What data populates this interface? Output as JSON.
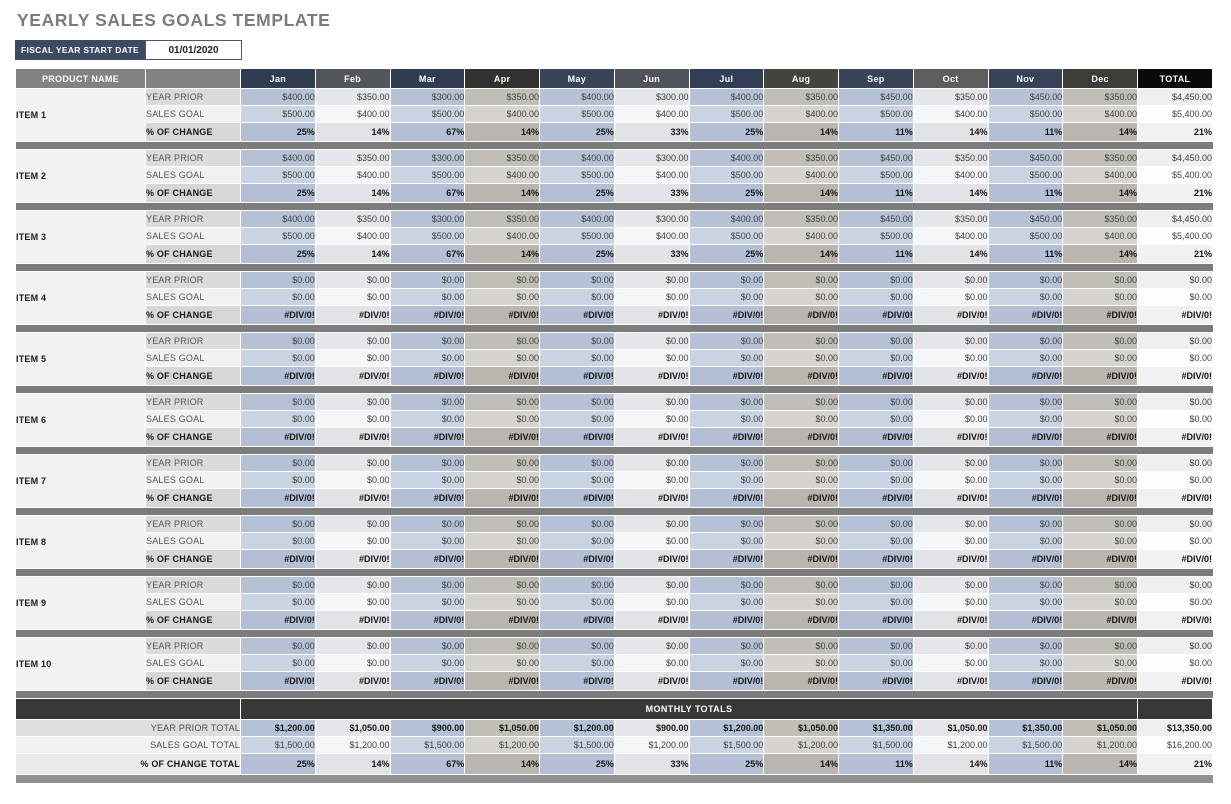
{
  "title": "YEARLY SALES GOALS TEMPLATE",
  "fiscal": {
    "label": "FISCAL YEAR START DATE",
    "value": "01/01/2020"
  },
  "colors": {
    "accent_navy": "#3d4a64",
    "header_gray": "#828282",
    "separator_gray": "#7c7c7c",
    "totals_bar_dark": "#383838",
    "total_header_black": "#0a0a0a",
    "month_headers": [
      "#303c52",
      "#53565b",
      "#303c52",
      "#333130",
      "#3a4459",
      "#50535a",
      "#323e55",
      "#454340",
      "#3a4459",
      "#5e5e5e",
      "#38435a",
      "#3e3c39"
    ],
    "column_tint_blue": "#b5c2d6",
    "column_tint_light": "#e5e6e9",
    "column_tint_warm": "#c1beb8"
  },
  "table": {
    "product_header": "PRODUCT NAME",
    "months": [
      "Jan",
      "Feb",
      "Mar",
      "Apr",
      "May",
      "Jun",
      "Jul",
      "Aug",
      "Sep",
      "Oct",
      "Nov",
      "Dec"
    ],
    "total_header": "TOTAL",
    "row_labels": {
      "year_prior": "YEAR PRIOR",
      "sales_goal": "SALES GOAL",
      "pct_change": "% OF CHANGE"
    },
    "items": [
      {
        "name": "ITEM 1",
        "year_prior": [
          "$400.00",
          "$350.00",
          "$300.00",
          "$350.00",
          "$400.00",
          "$300.00",
          "$400.00",
          "$350.00",
          "$450.00",
          "$350.00",
          "$450.00",
          "$350.00"
        ],
        "year_prior_total": "$4,450.00",
        "sales_goal": [
          "$500.00",
          "$400.00",
          "$500.00",
          "$400.00",
          "$500.00",
          "$400.00",
          "$500.00",
          "$400.00",
          "$500.00",
          "$400.00",
          "$500.00",
          "$400.00"
        ],
        "sales_goal_total": "$5,400.00",
        "pct_change": [
          "25%",
          "14%",
          "67%",
          "14%",
          "25%",
          "33%",
          "25%",
          "14%",
          "11%",
          "14%",
          "11%",
          "14%"
        ],
        "pct_change_total": "21%"
      },
      {
        "name": "ITEM 2",
        "year_prior": [
          "$400.00",
          "$350.00",
          "$300.00",
          "$350.00",
          "$400.00",
          "$300.00",
          "$400.00",
          "$350.00",
          "$450.00",
          "$350.00",
          "$450.00",
          "$350.00"
        ],
        "year_prior_total": "$4,450.00",
        "sales_goal": [
          "$500.00",
          "$400.00",
          "$500.00",
          "$400.00",
          "$500.00",
          "$400.00",
          "$500.00",
          "$400.00",
          "$500.00",
          "$400.00",
          "$500.00",
          "$400.00"
        ],
        "sales_goal_total": "$5,400.00",
        "pct_change": [
          "25%",
          "14%",
          "67%",
          "14%",
          "25%",
          "33%",
          "25%",
          "14%",
          "11%",
          "14%",
          "11%",
          "14%"
        ],
        "pct_change_total": "21%"
      },
      {
        "name": "ITEM 3",
        "year_prior": [
          "$400.00",
          "$350.00",
          "$300.00",
          "$350.00",
          "$400.00",
          "$300.00",
          "$400.00",
          "$350.00",
          "$450.00",
          "$350.00",
          "$450.00",
          "$350.00"
        ],
        "year_prior_total": "$4,450.00",
        "sales_goal": [
          "$500.00",
          "$400.00",
          "$500.00",
          "$400.00",
          "$500.00",
          "$400.00",
          "$500.00",
          "$400.00",
          "$500.00",
          "$400.00",
          "$500.00",
          "$400.00"
        ],
        "sales_goal_total": "$5,400.00",
        "pct_change": [
          "25%",
          "14%",
          "67%",
          "14%",
          "25%",
          "33%",
          "25%",
          "14%",
          "11%",
          "14%",
          "11%",
          "14%"
        ],
        "pct_change_total": "21%"
      },
      {
        "name": "ITEM 4",
        "year_prior": [
          "$0.00",
          "$0.00",
          "$0.00",
          "$0.00",
          "$0.00",
          "$0.00",
          "$0.00",
          "$0.00",
          "$0.00",
          "$0.00",
          "$0.00",
          "$0.00"
        ],
        "year_prior_total": "$0.00",
        "sales_goal": [
          "$0.00",
          "$0.00",
          "$0.00",
          "$0.00",
          "$0.00",
          "$0.00",
          "$0.00",
          "$0.00",
          "$0.00",
          "$0.00",
          "$0.00",
          "$0.00"
        ],
        "sales_goal_total": "$0.00",
        "pct_change": [
          "#DIV/0!",
          "#DIV/0!",
          "#DIV/0!",
          "#DIV/0!",
          "#DIV/0!",
          "#DIV/0!",
          "#DIV/0!",
          "#DIV/0!",
          "#DIV/0!",
          "#DIV/0!",
          "#DIV/0!",
          "#DIV/0!"
        ],
        "pct_change_total": "#DIV/0!"
      },
      {
        "name": "ITEM 5",
        "year_prior": [
          "$0.00",
          "$0.00",
          "$0.00",
          "$0.00",
          "$0.00",
          "$0.00",
          "$0.00",
          "$0.00",
          "$0.00",
          "$0.00",
          "$0.00",
          "$0.00"
        ],
        "year_prior_total": "$0.00",
        "sales_goal": [
          "$0.00",
          "$0.00",
          "$0.00",
          "$0.00",
          "$0.00",
          "$0.00",
          "$0.00",
          "$0.00",
          "$0.00",
          "$0.00",
          "$0.00",
          "$0.00"
        ],
        "sales_goal_total": "$0.00",
        "pct_change": [
          "#DIV/0!",
          "#DIV/0!",
          "#DIV/0!",
          "#DIV/0!",
          "#DIV/0!",
          "#DIV/0!",
          "#DIV/0!",
          "#DIV/0!",
          "#DIV/0!",
          "#DIV/0!",
          "#DIV/0!",
          "#DIV/0!"
        ],
        "pct_change_total": "#DIV/0!"
      },
      {
        "name": "ITEM 6",
        "year_prior": [
          "$0.00",
          "$0.00",
          "$0.00",
          "$0.00",
          "$0.00",
          "$0.00",
          "$0.00",
          "$0.00",
          "$0.00",
          "$0.00",
          "$0.00",
          "$0.00"
        ],
        "year_prior_total": "$0.00",
        "sales_goal": [
          "$0.00",
          "$0.00",
          "$0.00",
          "$0.00",
          "$0.00",
          "$0.00",
          "$0.00",
          "$0.00",
          "$0.00",
          "$0.00",
          "$0.00",
          "$0.00"
        ],
        "sales_goal_total": "$0.00",
        "pct_change": [
          "#DIV/0!",
          "#DIV/0!",
          "#DIV/0!",
          "#DIV/0!",
          "#DIV/0!",
          "#DIV/0!",
          "#DIV/0!",
          "#DIV/0!",
          "#DIV/0!",
          "#DIV/0!",
          "#DIV/0!",
          "#DIV/0!"
        ],
        "pct_change_total": "#DIV/0!"
      },
      {
        "name": "ITEM 7",
        "year_prior": [
          "$0.00",
          "$0.00",
          "$0.00",
          "$0.00",
          "$0.00",
          "$0.00",
          "$0.00",
          "$0.00",
          "$0.00",
          "$0.00",
          "$0.00",
          "$0.00"
        ],
        "year_prior_total": "$0.00",
        "sales_goal": [
          "$0.00",
          "$0.00",
          "$0.00",
          "$0.00",
          "$0.00",
          "$0.00",
          "$0.00",
          "$0.00",
          "$0.00",
          "$0.00",
          "$0.00",
          "$0.00"
        ],
        "sales_goal_total": "$0.00",
        "pct_change": [
          "#DIV/0!",
          "#DIV/0!",
          "#DIV/0!",
          "#DIV/0!",
          "#DIV/0!",
          "#DIV/0!",
          "#DIV/0!",
          "#DIV/0!",
          "#DIV/0!",
          "#DIV/0!",
          "#DIV/0!",
          "#DIV/0!"
        ],
        "pct_change_total": "#DIV/0!"
      },
      {
        "name": "ITEM 8",
        "year_prior": [
          "$0.00",
          "$0.00",
          "$0.00",
          "$0.00",
          "$0.00",
          "$0.00",
          "$0.00",
          "$0.00",
          "$0.00",
          "$0.00",
          "$0.00",
          "$0.00"
        ],
        "year_prior_total": "$0.00",
        "sales_goal": [
          "$0.00",
          "$0.00",
          "$0.00",
          "$0.00",
          "$0.00",
          "$0.00",
          "$0.00",
          "$0.00",
          "$0.00",
          "$0.00",
          "$0.00",
          "$0.00"
        ],
        "sales_goal_total": "$0.00",
        "pct_change": [
          "#DIV/0!",
          "#DIV/0!",
          "#DIV/0!",
          "#DIV/0!",
          "#DIV/0!",
          "#DIV/0!",
          "#DIV/0!",
          "#DIV/0!",
          "#DIV/0!",
          "#DIV/0!",
          "#DIV/0!",
          "#DIV/0!"
        ],
        "pct_change_total": "#DIV/0!"
      },
      {
        "name": "ITEM 9",
        "year_prior": [
          "$0.00",
          "$0.00",
          "$0.00",
          "$0.00",
          "$0.00",
          "$0.00",
          "$0.00",
          "$0.00",
          "$0.00",
          "$0.00",
          "$0.00",
          "$0.00"
        ],
        "year_prior_total": "$0.00",
        "sales_goal": [
          "$0.00",
          "$0.00",
          "$0.00",
          "$0.00",
          "$0.00",
          "$0.00",
          "$0.00",
          "$0.00",
          "$0.00",
          "$0.00",
          "$0.00",
          "$0.00"
        ],
        "sales_goal_total": "$0.00",
        "pct_change": [
          "#DIV/0!",
          "#DIV/0!",
          "#DIV/0!",
          "#DIV/0!",
          "#DIV/0!",
          "#DIV/0!",
          "#DIV/0!",
          "#DIV/0!",
          "#DIV/0!",
          "#DIV/0!",
          "#DIV/0!",
          "#DIV/0!"
        ],
        "pct_change_total": "#DIV/0!"
      },
      {
        "name": "ITEM 10",
        "year_prior": [
          "$0.00",
          "$0.00",
          "$0.00",
          "$0.00",
          "$0.00",
          "$0.00",
          "$0.00",
          "$0.00",
          "$0.00",
          "$0.00",
          "$0.00",
          "$0.00"
        ],
        "year_prior_total": "$0.00",
        "sales_goal": [
          "$0.00",
          "$0.00",
          "$0.00",
          "$0.00",
          "$0.00",
          "$0.00",
          "$0.00",
          "$0.00",
          "$0.00",
          "$0.00",
          "$0.00",
          "$0.00"
        ],
        "sales_goal_total": "$0.00",
        "pct_change": [
          "#DIV/0!",
          "#DIV/0!",
          "#DIV/0!",
          "#DIV/0!",
          "#DIV/0!",
          "#DIV/0!",
          "#DIV/0!",
          "#DIV/0!",
          "#DIV/0!",
          "#DIV/0!",
          "#DIV/0!",
          "#DIV/0!"
        ],
        "pct_change_total": "#DIV/0!"
      }
    ],
    "monthly_totals": {
      "header": "MONTHLY TOTALS",
      "year_prior_label": "YEAR PRIOR TOTAL",
      "year_prior": [
        "$1,200.00",
        "$1,050.00",
        "$900.00",
        "$1,050.00",
        "$1,200.00",
        "$900.00",
        "$1,200.00",
        "$1,050.00",
        "$1,350.00",
        "$1,050.00",
        "$1,350.00",
        "$1,050.00"
      ],
      "year_prior_total": "$13,350.00",
      "sales_goal_label": "SALES GOAL TOTAL",
      "sales_goal": [
        "$1,500.00",
        "$1,200.00",
        "$1,500.00",
        "$1,200.00",
        "$1,500.00",
        "$1,200.00",
        "$1,500.00",
        "$1,200.00",
        "$1,500.00",
        "$1,200.00",
        "$1,500.00",
        "$1,200.00"
      ],
      "sales_goal_total": "$16,200.00",
      "pct_label": "% OF CHANGE TOTAL",
      "pct": [
        "25%",
        "14%",
        "67%",
        "14%",
        "25%",
        "33%",
        "25%",
        "14%",
        "11%",
        "14%",
        "11%",
        "14%"
      ],
      "pct_total": "21%"
    }
  }
}
